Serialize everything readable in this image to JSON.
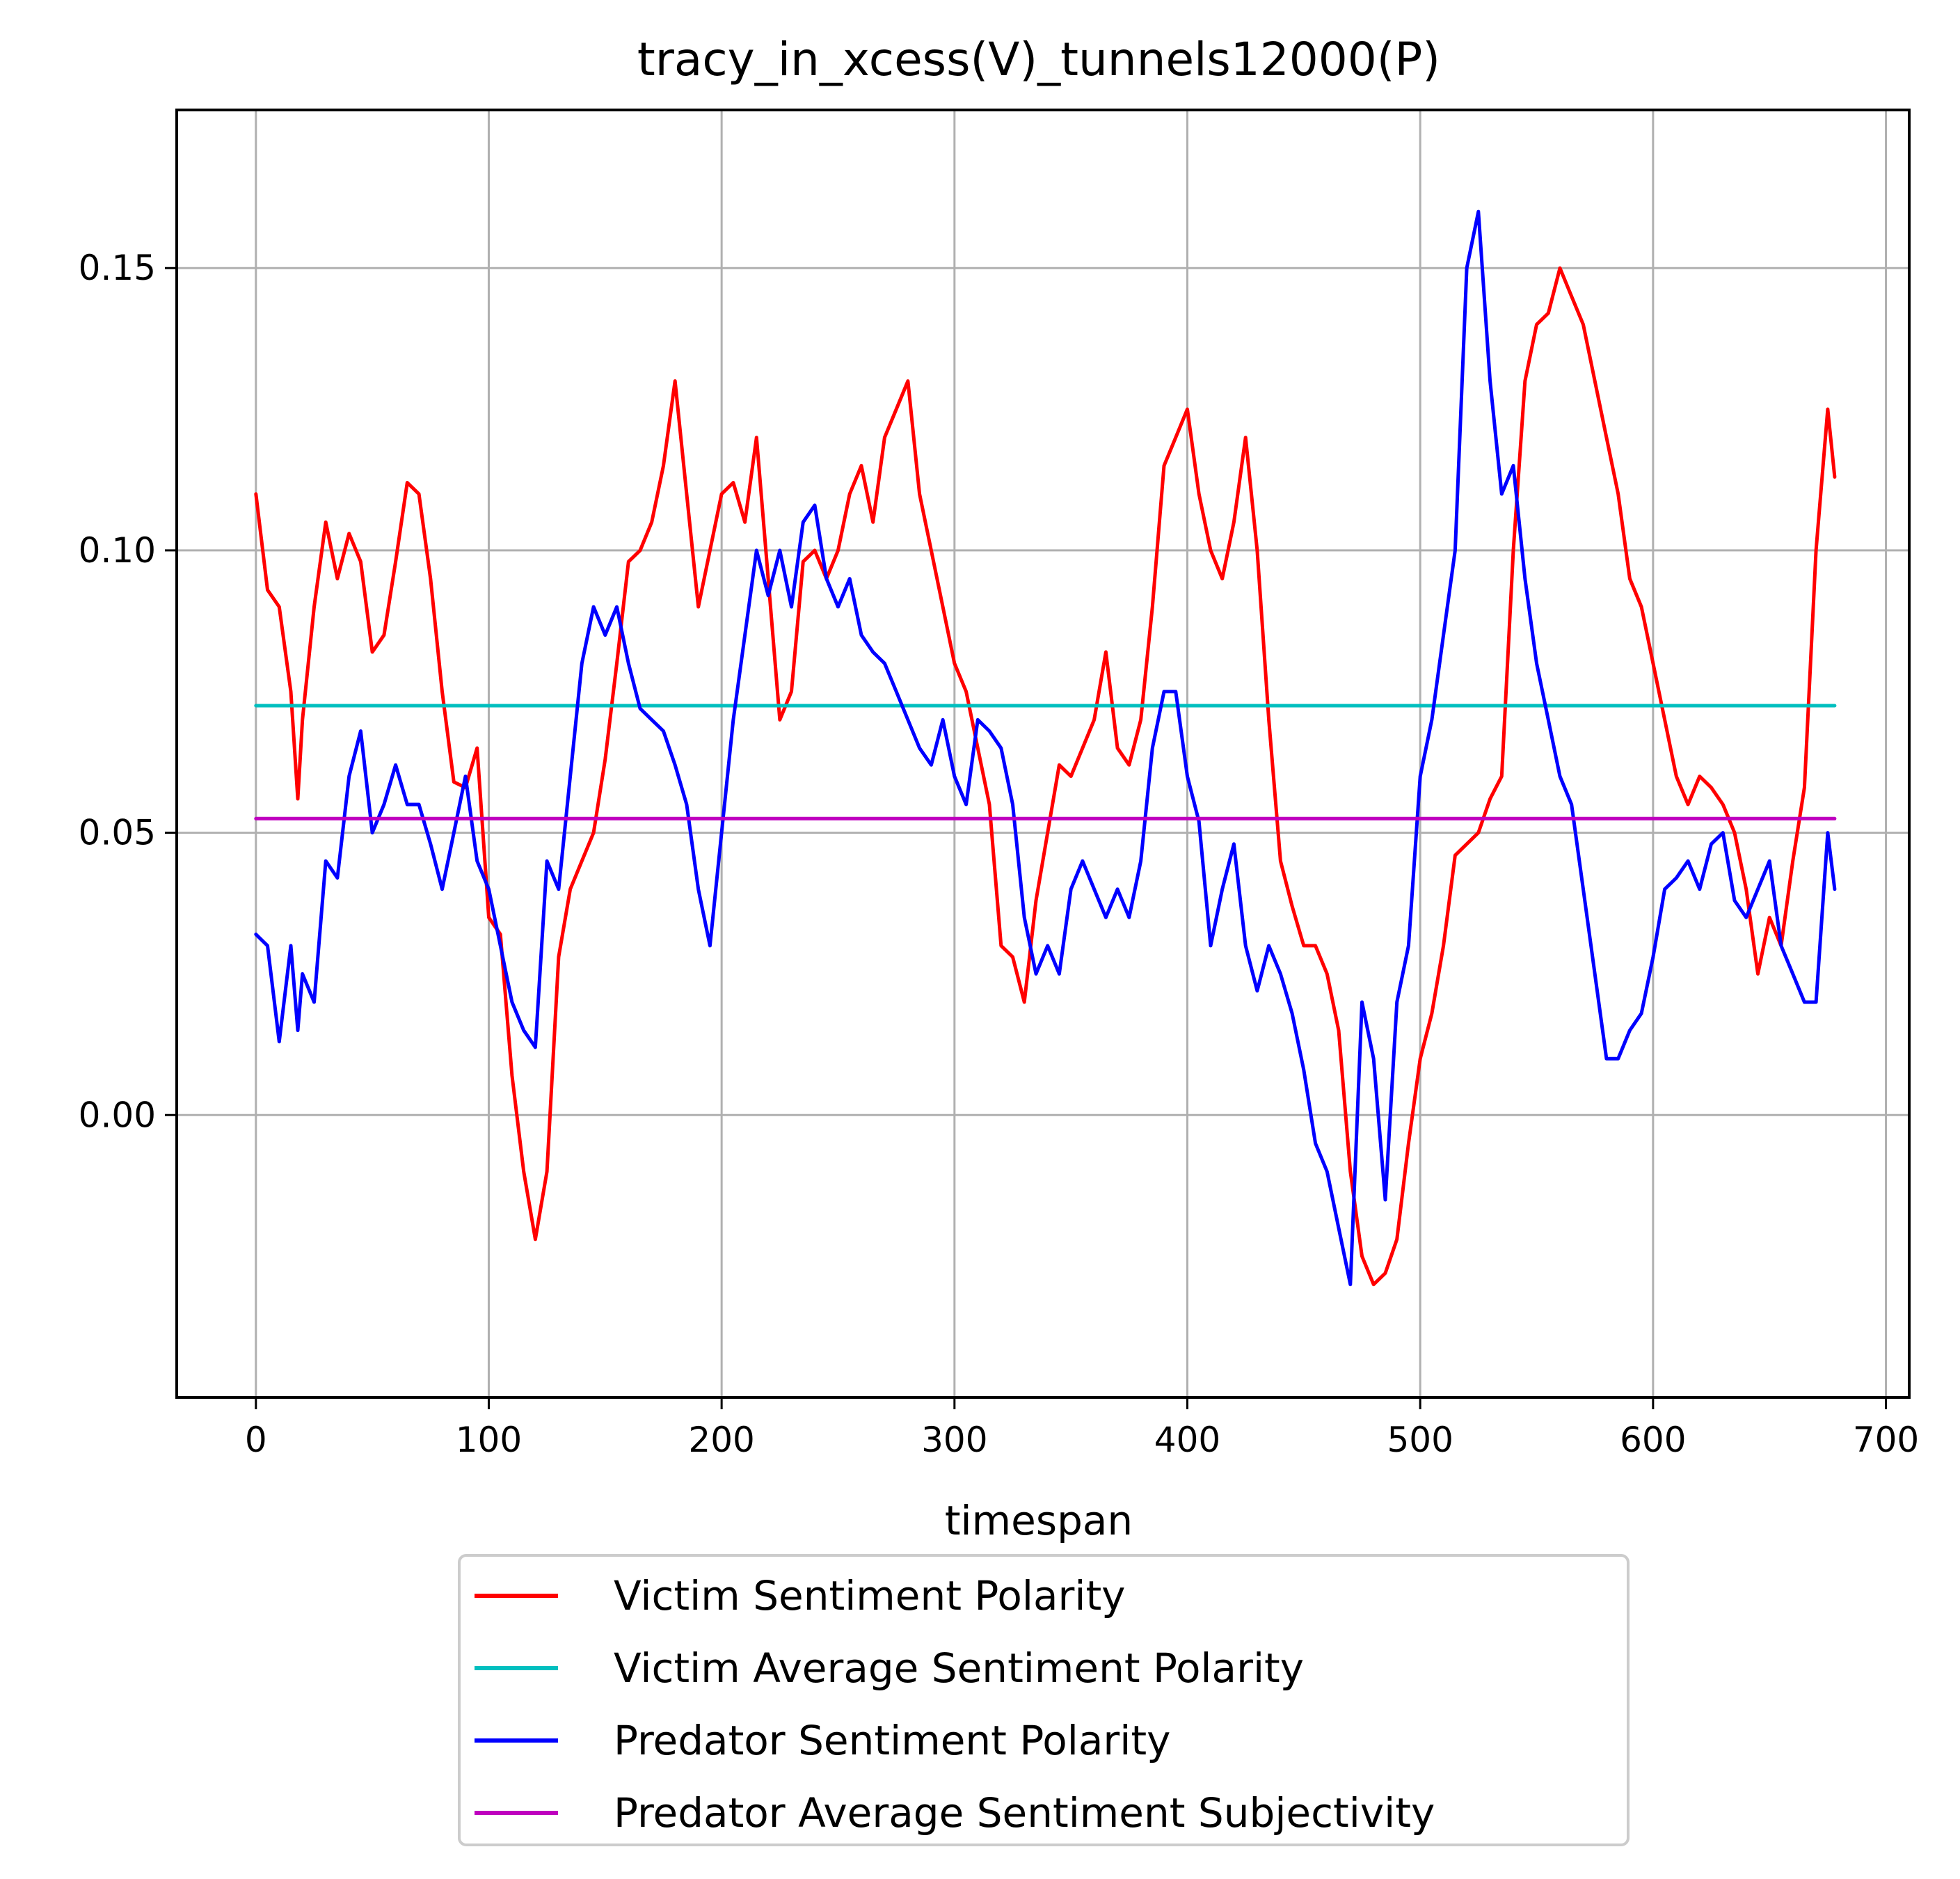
{
  "chart_data": {
    "type": "line",
    "title": "tracy_in_xcess(V)_tunnels12000(P)",
    "xlabel": "timespan",
    "ylabel": "",
    "xlim": [
      -34,
      710
    ],
    "ylim": [
      -0.05,
      0.178
    ],
    "xticks": [
      0,
      100,
      200,
      300,
      400,
      500,
      600,
      700
    ],
    "xtick_labels": [
      "0",
      "100",
      "200",
      "300",
      "400",
      "500",
      "600",
      "700"
    ],
    "yticks": [
      0.0,
      0.05,
      0.1,
      0.15
    ],
    "ytick_labels": [
      "0.00",
      "0.05",
      "0.10",
      "0.15"
    ],
    "grid": true,
    "legend_position": "below plot",
    "series": [
      {
        "name": "Victim Sentiment Polarity",
        "color": "#ff0000",
        "x": [
          0,
          5,
          10,
          15,
          18,
          20,
          25,
          30,
          35,
          40,
          45,
          50,
          55,
          60,
          65,
          70,
          75,
          80,
          85,
          90,
          95,
          100,
          105,
          110,
          115,
          120,
          125,
          130,
          135,
          140,
          145,
          150,
          155,
          160,
          165,
          170,
          175,
          180,
          185,
          190,
          195,
          200,
          205,
          210,
          215,
          220,
          225,
          230,
          235,
          240,
          245,
          250,
          255,
          260,
          265,
          270,
          275,
          280,
          285,
          290,
          295,
          300,
          305,
          310,
          315,
          320,
          325,
          330,
          335,
          340,
          345,
          350,
          355,
          360,
          365,
          370,
          375,
          380,
          385,
          390,
          395,
          400,
          405,
          410,
          415,
          420,
          425,
          430,
          435,
          440,
          445,
          450,
          455,
          460,
          465,
          470,
          475,
          480,
          485,
          490,
          495,
          500,
          505,
          510,
          515,
          520,
          525,
          530,
          535,
          540,
          545,
          550,
          555,
          560,
          565,
          570,
          575,
          580,
          585,
          590,
          595,
          600,
          605,
          610,
          615,
          620,
          625,
          630,
          635,
          640,
          645,
          650,
          655,
          660,
          665,
          670,
          675,
          678
        ],
        "y": [
          0.11,
          0.093,
          0.09,
          0.075,
          0.056,
          0.07,
          0.09,
          0.105,
          0.095,
          0.103,
          0.098,
          0.082,
          0.085,
          0.098,
          0.112,
          0.11,
          0.095,
          0.075,
          0.059,
          0.058,
          0.065,
          0.035,
          0.032,
          0.007,
          -0.01,
          -0.022,
          -0.01,
          0.028,
          0.04,
          0.045,
          0.05,
          0.063,
          0.08,
          0.098,
          0.1,
          0.105,
          0.115,
          0.13,
          0.11,
          0.09,
          0.1,
          0.11,
          0.112,
          0.105,
          0.12,
          0.095,
          0.07,
          0.075,
          0.098,
          0.1,
          0.095,
          0.1,
          0.11,
          0.115,
          0.105,
          0.12,
          0.125,
          0.13,
          0.11,
          0.1,
          0.09,
          0.08,
          0.075,
          0.065,
          0.055,
          0.03,
          0.028,
          0.02,
          0.038,
          0.05,
          0.062,
          0.06,
          0.065,
          0.07,
          0.082,
          0.065,
          0.062,
          0.07,
          0.09,
          0.115,
          0.12,
          0.125,
          0.11,
          0.1,
          0.095,
          0.105,
          0.12,
          0.1,
          0.07,
          0.045,
          0.037,
          0.03,
          0.03,
          0.025,
          0.015,
          -0.01,
          -0.025,
          -0.03,
          -0.028,
          -0.022,
          -0.005,
          0.01,
          0.018,
          0.03,
          0.046,
          0.048,
          0.05,
          0.056,
          0.06,
          0.1,
          0.13,
          0.14,
          0.142,
          0.15,
          0.145,
          0.14,
          0.13,
          0.12,
          0.11,
          0.095,
          0.09,
          0.08,
          0.07,
          0.06,
          0.055,
          0.06,
          0.058,
          0.055,
          0.05,
          0.04,
          0.025,
          0.035,
          0.03,
          0.045,
          0.058,
          0.1,
          0.125,
          0.113
        ]
      },
      {
        "name": "Victim Average Sentiment Polarity",
        "color": "#00bfbf",
        "x": [
          0,
          678
        ],
        "y": [
          0.0725,
          0.0725
        ]
      },
      {
        "name": "Predator Sentiment Polarity",
        "color": "#0000ff",
        "x": [
          0,
          5,
          10,
          15,
          18,
          20,
          25,
          30,
          35,
          40,
          45,
          50,
          55,
          60,
          65,
          70,
          75,
          80,
          85,
          90,
          95,
          100,
          105,
          110,
          115,
          120,
          125,
          130,
          135,
          140,
          145,
          150,
          155,
          160,
          165,
          170,
          175,
          180,
          185,
          190,
          195,
          200,
          205,
          210,
          215,
          220,
          225,
          230,
          235,
          240,
          245,
          250,
          255,
          260,
          265,
          270,
          275,
          280,
          285,
          290,
          295,
          300,
          305,
          310,
          315,
          320,
          325,
          330,
          335,
          340,
          345,
          350,
          355,
          360,
          365,
          370,
          375,
          380,
          385,
          390,
          395,
          400,
          405,
          410,
          415,
          420,
          425,
          430,
          435,
          440,
          445,
          450,
          455,
          460,
          465,
          470,
          475,
          480,
          485,
          490,
          495,
          500,
          505,
          510,
          515,
          520,
          525,
          530,
          535,
          540,
          545,
          550,
          555,
          560,
          565,
          570,
          575,
          580,
          585,
          590,
          595,
          600,
          605,
          610,
          615,
          620,
          625,
          630,
          635,
          640,
          645,
          650,
          655,
          660,
          665,
          670,
          675,
          678
        ],
        "y": [
          0.032,
          0.03,
          0.013,
          0.03,
          0.015,
          0.025,
          0.02,
          0.045,
          0.042,
          0.06,
          0.068,
          0.05,
          0.055,
          0.062,
          0.055,
          0.055,
          0.048,
          0.04,
          0.05,
          0.06,
          0.045,
          0.04,
          0.03,
          0.02,
          0.015,
          0.012,
          0.045,
          0.04,
          0.06,
          0.08,
          0.09,
          0.085,
          0.09,
          0.08,
          0.072,
          0.07,
          0.068,
          0.062,
          0.055,
          0.04,
          0.03,
          0.05,
          0.07,
          0.085,
          0.1,
          0.092,
          0.1,
          0.09,
          0.105,
          0.108,
          0.095,
          0.09,
          0.095,
          0.085,
          0.082,
          0.08,
          0.075,
          0.07,
          0.065,
          0.062,
          0.07,
          0.06,
          0.055,
          0.07,
          0.068,
          0.065,
          0.055,
          0.035,
          0.025,
          0.03,
          0.025,
          0.04,
          0.045,
          0.04,
          0.035,
          0.04,
          0.035,
          0.045,
          0.065,
          0.075,
          0.075,
          0.06,
          0.052,
          0.03,
          0.04,
          0.048,
          0.03,
          0.022,
          0.03,
          0.025,
          0.018,
          0.008,
          -0.005,
          -0.01,
          -0.02,
          -0.03,
          0.02,
          0.01,
          -0.015,
          0.02,
          0.03,
          0.06,
          0.07,
          0.085,
          0.1,
          0.15,
          0.16,
          0.13,
          0.11,
          0.115,
          0.095,
          0.08,
          0.07,
          0.06,
          0.055,
          0.04,
          0.025,
          0.01,
          0.01,
          0.015,
          0.018,
          0.028,
          0.04,
          0.042,
          0.045,
          0.04,
          0.048,
          0.05,
          0.038,
          0.035,
          0.04,
          0.045,
          0.03,
          0.025,
          0.02,
          0.02,
          0.05,
          0.04
        ]
      },
      {
        "name": "Predator Average Sentiment Subjectivity",
        "color": "#bf00bf",
        "x": [
          0,
          678
        ],
        "y": [
          0.0525,
          0.0525
        ]
      }
    ]
  }
}
